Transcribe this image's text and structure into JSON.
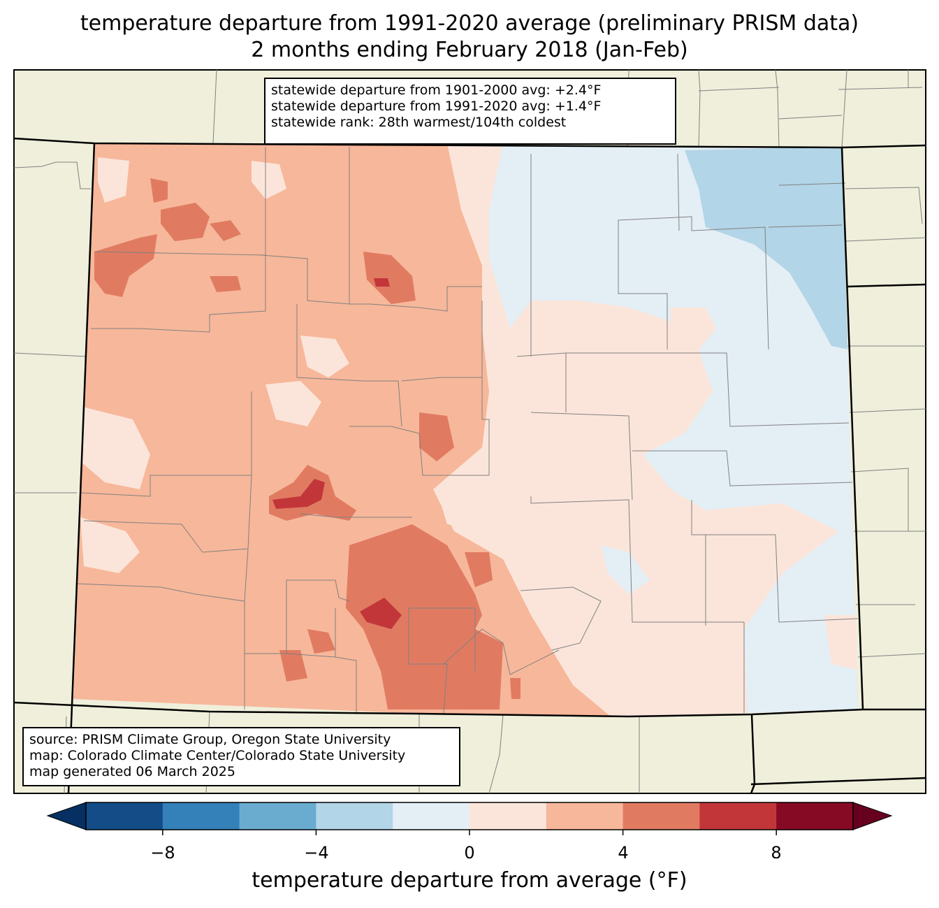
{
  "title": {
    "line1": "temperature departure from 1991-2020 average (preliminary PRISM data)",
    "line2": "2 months ending February 2018 (Jan-Feb)"
  },
  "stats": {
    "line1": "statewide departure from 1901-2000 avg: +2.4°F",
    "line2": "statewide departure from 1991-2020 avg: +1.4°F",
    "line3": "statewide rank: 28th warmest/104th coldest"
  },
  "source": {
    "line1": "source: PRISM Climate Group, Oregon State University",
    "line2": "map: Colorado Climate Center/Colorado State University",
    "line3": "map generated 06 March 2025"
  },
  "colorbar": {
    "label": "temperature departure from average (°F)",
    "ticks": [
      "−8",
      "−4",
      "0",
      "4",
      "8"
    ],
    "bins": [
      -10,
      -8,
      -6,
      -4,
      -2,
      0,
      2,
      4,
      6,
      8,
      10
    ],
    "colors": [
      "#134c87",
      "#3480b9",
      "#6aacd0",
      "#b2d5e7",
      "#e4eef5",
      "#fbe5da",
      "#f7b79a",
      "#e07b62",
      "#c2363a",
      "#870a24"
    ],
    "under_color": "#053061",
    "over_color": "#67001f"
  },
  "colors": {
    "land": "#efefdb",
    "border": "#000000",
    "county": "#808080"
  }
}
